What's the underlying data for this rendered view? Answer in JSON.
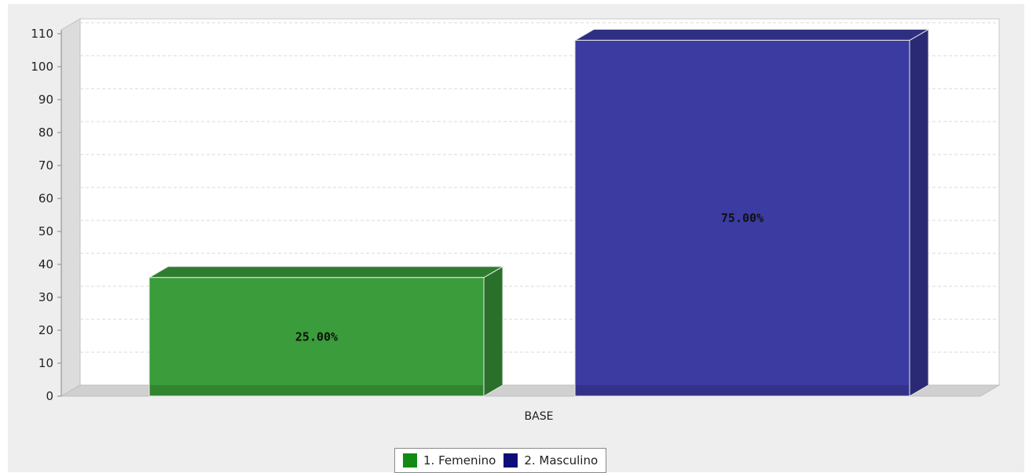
{
  "chart_data": {
    "type": "bar",
    "title": "",
    "xlabel": "",
    "ylabel": "",
    "categories": [
      "BASE"
    ],
    "ylim": [
      0,
      110
    ],
    "yticks": [
      0,
      10,
      20,
      30,
      40,
      50,
      60,
      70,
      80,
      90,
      100,
      110
    ],
    "grid": true,
    "legend_position": "bottom",
    "three_d": true,
    "series": [
      {
        "name": "1. Femenino",
        "values": [
          36
        ],
        "label": "25.00%",
        "color": "#3a9c3a",
        "swatch_color": "#138a13"
      },
      {
        "name": "2. Masculino",
        "values": [
          108
        ],
        "label": "75.00%",
        "color": "#3b3ba1",
        "swatch_color": "#0d0d7a"
      }
    ]
  }
}
